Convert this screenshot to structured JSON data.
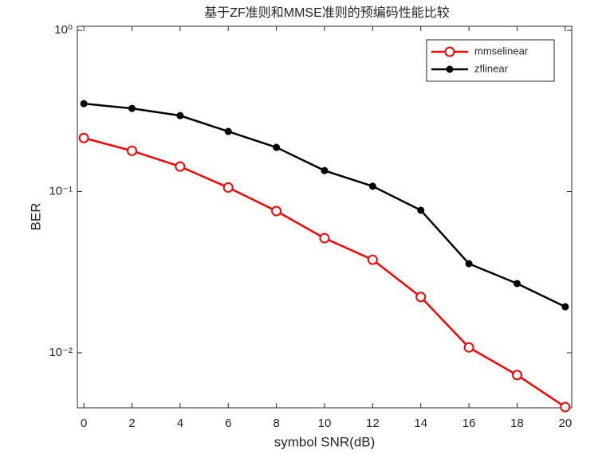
{
  "chart_data": {
    "type": "line",
    "title": "基于ZF准则和MMSE准则的预编码性能比较",
    "xlabel": "symbol SNR(dB)",
    "ylabel": "BER",
    "x": [
      0,
      2,
      4,
      6,
      8,
      10,
      12,
      14,
      16,
      18,
      20
    ],
    "series": [
      {
        "name": "mmselinear",
        "color": "#ff0000",
        "marker": "open-circle",
        "values": [
          0.215,
          0.179,
          0.143,
          0.106,
          0.0757,
          0.0514,
          0.0378,
          0.0222,
          0.0108,
          0.00728,
          0.00461
        ]
      },
      {
        "name": "zflinear",
        "color": "#000000",
        "marker": "dot",
        "values": [
          0.351,
          0.328,
          0.296,
          0.236,
          0.188,
          0.135,
          0.108,
          0.0766,
          0.0357,
          0.0269,
          0.0193
        ]
      }
    ],
    "xlim": [
      -0.27,
      20.27
    ],
    "xticks": [
      0,
      2,
      4,
      6,
      8,
      10,
      12,
      14,
      16,
      18,
      20
    ],
    "ylim": [
      0.00456,
      1.06
    ],
    "yscale": "log",
    "yticks": [
      {
        "value": 1,
        "label": "10⁰"
      },
      {
        "value": 0.1,
        "label": "10⁻¹"
      },
      {
        "value": 0.01,
        "label": "10⁻²"
      }
    ],
    "legend": "northeast"
  }
}
